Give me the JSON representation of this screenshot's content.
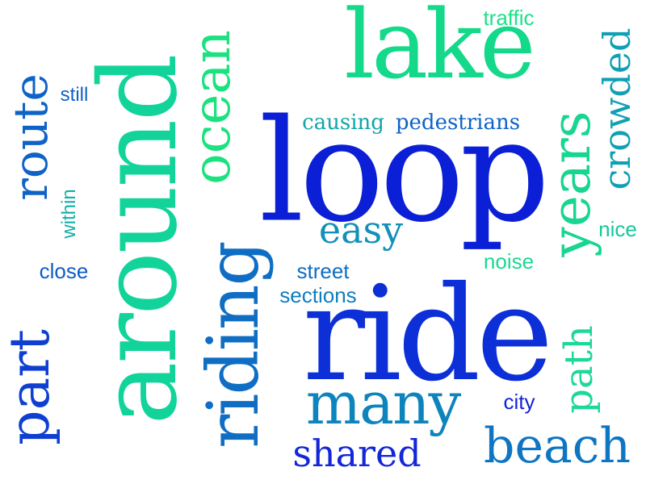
{
  "word_cloud": {
    "words": [
      {
        "text": "loop",
        "color": "#0a1fd6"
      },
      {
        "text": "ride",
        "color": "#0c2fd8"
      },
      {
        "text": "around",
        "color": "#12d49a"
      },
      {
        "text": "lake",
        "color": "#14d98a"
      },
      {
        "text": "riding",
        "color": "#0f6ec4"
      },
      {
        "text": "many",
        "color": "#0e84bd"
      },
      {
        "text": "ocean",
        "color": "#19e27e"
      },
      {
        "text": "part",
        "color": "#0f3fd2"
      },
      {
        "text": "route",
        "color": "#0e63c6"
      },
      {
        "text": "years",
        "color": "#18d590"
      },
      {
        "text": "crowded",
        "color": "#0fa0b4"
      },
      {
        "text": "beach",
        "color": "#0e75c2"
      },
      {
        "text": "path",
        "color": "#1dd897"
      },
      {
        "text": "shared",
        "color": "#1327d8"
      },
      {
        "text": "easy",
        "color": "#1390b8"
      },
      {
        "text": "pedestrians",
        "color": "#0e63c6"
      },
      {
        "text": "causing",
        "color": "#12a6a8"
      },
      {
        "text": "traffic",
        "color": "#1ee08a"
      },
      {
        "text": "still",
        "color": "#0f62c5"
      },
      {
        "text": "within",
        "color": "#12b0a6"
      },
      {
        "text": "close",
        "color": "#0f5cc8"
      },
      {
        "text": "street",
        "color": "#0f6ec2"
      },
      {
        "text": "sections",
        "color": "#0f7ec0"
      },
      {
        "text": "noise",
        "color": "#1cd892"
      },
      {
        "text": "nice",
        "color": "#14c99c"
      },
      {
        "text": "city",
        "color": "#1322d6"
      }
    ]
  }
}
